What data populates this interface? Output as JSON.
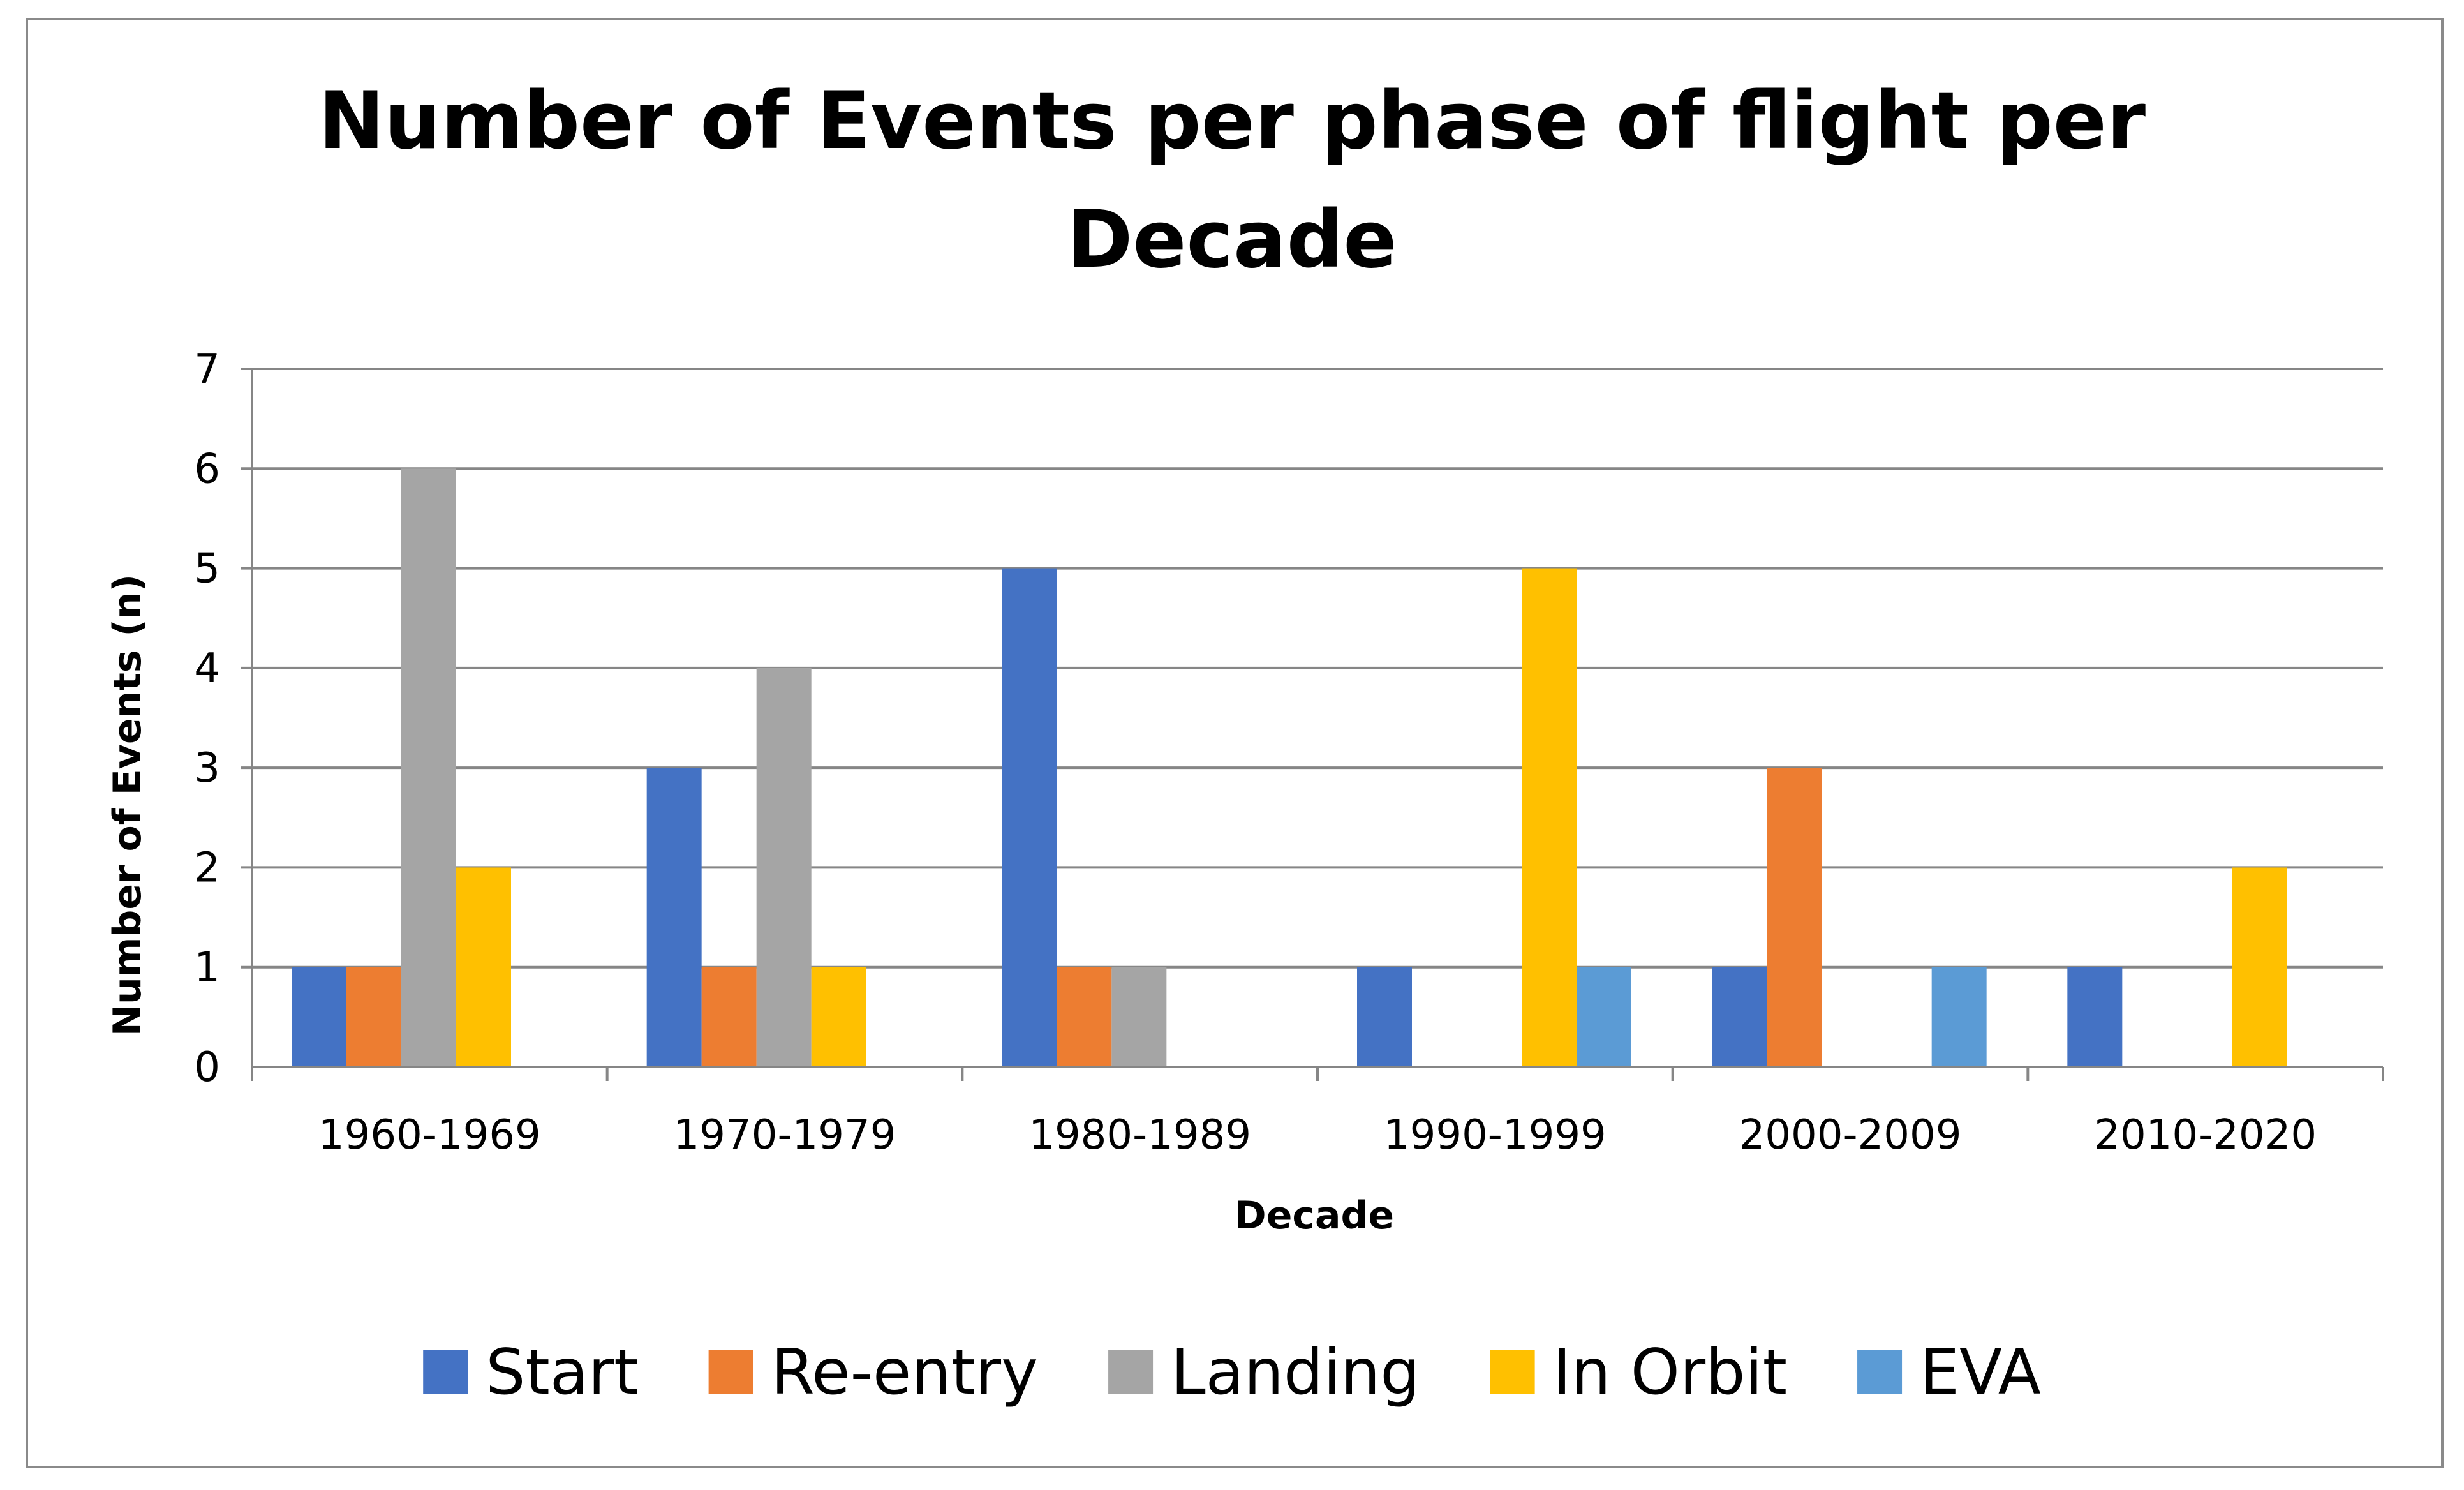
{
  "chart_data": {
    "type": "bar",
    "title_lines": [
      "Number of Events per phase of flight per",
      "Decade"
    ],
    "xlabel": "Decade",
    "ylabel": "Number of Events (n)",
    "ylim": [
      0,
      7
    ],
    "yticks": [
      "0",
      "1",
      "2",
      "3",
      "4",
      "5",
      "6",
      "7"
    ],
    "grid": true,
    "legend_position": "bottom",
    "categories": [
      "1960-1969",
      "1970-1979",
      "1980-1989",
      "1990-1999",
      "2000-2009",
      "2010-2020"
    ],
    "series": [
      {
        "name": "Start",
        "color": "#4472C4",
        "values": [
          1,
          3,
          5,
          1,
          1,
          1
        ]
      },
      {
        "name": "Re-entry",
        "color": "#ED7D31",
        "values": [
          1,
          1,
          1,
          0,
          3,
          0
        ]
      },
      {
        "name": "Landing",
        "color": "#A5A5A5",
        "values": [
          6,
          4,
          1,
          0,
          0,
          0
        ]
      },
      {
        "name": "In Orbit",
        "color": "#FFC000",
        "values": [
          2,
          1,
          0,
          5,
          0,
          2
        ]
      },
      {
        "name": "EVA",
        "color": "#5B9BD5",
        "values": [
          0,
          0,
          0,
          1,
          1,
          0
        ]
      }
    ],
    "gridline_color": "#868686",
    "axis_color": "#868686"
  }
}
